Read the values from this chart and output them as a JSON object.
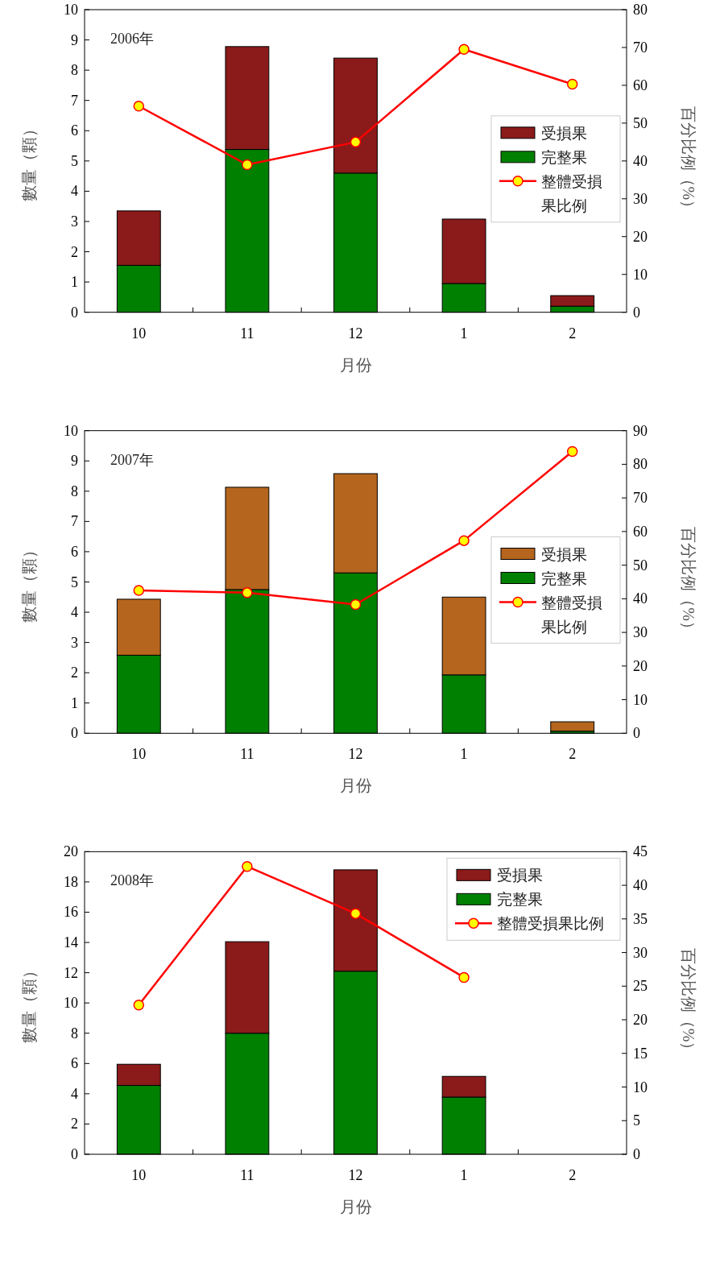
{
  "chart_data": [
    {
      "type": "bar",
      "title": "2006年",
      "xlabel": "月份",
      "ylabel": "數量（顆）",
      "y2label": "百分比例（%）",
      "categories": [
        "10",
        "11",
        "12",
        "1",
        "2"
      ],
      "stacked": true,
      "legend": "right",
      "marker": "circle",
      "line_style": "solid",
      "ylim": [
        0,
        10
      ],
      "yticks": [
        0,
        1,
        2,
        3,
        4,
        5,
        6,
        7,
        8,
        9,
        10
      ],
      "y2lim": [
        0,
        80
      ],
      "y2ticks": [
        0,
        10,
        20,
        30,
        40,
        50,
        60,
        70,
        80
      ],
      "series": [
        {
          "name": "完整果",
          "color": "#008000",
          "values": [
            1.55,
            5.38,
            4.6,
            0.95,
            0.2
          ]
        },
        {
          "name": "受損果",
          "color": "#8b1a1a",
          "values": [
            1.8,
            3.4,
            3.8,
            2.13,
            0.35
          ]
        },
        {
          "name": "整體受損果比例",
          "type": "line",
          "axis": "y2",
          "color": "#ff0000",
          "values": [
            54.5,
            39,
            45,
            69.5,
            60.3
          ]
        }
      ]
    },
    {
      "type": "bar",
      "title": "2007年",
      "xlabel": "月份",
      "ylabel": "數量（顆）",
      "y2label": "百分比例（%）",
      "categories": [
        "10",
        "11",
        "12",
        "1",
        "2"
      ],
      "stacked": true,
      "legend": "right",
      "marker": "circle",
      "line_style": "solid",
      "ylim": [
        0,
        10
      ],
      "yticks": [
        0,
        1,
        2,
        3,
        4,
        5,
        6,
        7,
        8,
        9,
        10
      ],
      "y2lim": [
        0,
        90
      ],
      "y2ticks": [
        0,
        10,
        20,
        30,
        40,
        50,
        60,
        70,
        80,
        90
      ],
      "series": [
        {
          "name": "完整果",
          "color": "#008000",
          "values": [
            2.58,
            4.75,
            5.3,
            1.93,
            0.07
          ]
        },
        {
          "name": "受損果",
          "color": "#b5651d",
          "values": [
            1.85,
            3.38,
            3.28,
            2.57,
            0.31
          ]
        },
        {
          "name": "整體受損果比例",
          "type": "line",
          "axis": "y2",
          "color": "#ff0000",
          "values": [
            42.5,
            41.8,
            38.3,
            57.3,
            83.8
          ]
        }
      ]
    },
    {
      "type": "bar",
      "title": "2008年",
      "xlabel": "月份",
      "ylabel": "數量（顆）",
      "y2label": "百分比例（%）",
      "categories": [
        "10",
        "11",
        "12",
        "1",
        "2"
      ],
      "stacked": true,
      "legend": "top right",
      "marker": "circle",
      "line_style": "solid",
      "ylim": [
        0,
        20
      ],
      "yticks": [
        0,
        2,
        4,
        6,
        8,
        10,
        12,
        14,
        16,
        18,
        20
      ],
      "y2lim": [
        0,
        45
      ],
      "y2ticks": [
        0,
        5,
        10,
        15,
        20,
        25,
        30,
        35,
        40,
        45
      ],
      "series": [
        {
          "name": "完整果",
          "color": "#008000",
          "values": [
            4.55,
            8.0,
            12.1,
            3.78,
            null
          ]
        },
        {
          "name": "受損果",
          "color": "#8b1a1a",
          "values": [
            1.4,
            6.05,
            6.7,
            1.37,
            null
          ]
        },
        {
          "name": "整體受損果比例",
          "type": "line",
          "axis": "y2",
          "color": "#ff0000",
          "values": [
            22.2,
            42.8,
            35.8,
            26.3,
            null
          ]
        }
      ]
    }
  ]
}
